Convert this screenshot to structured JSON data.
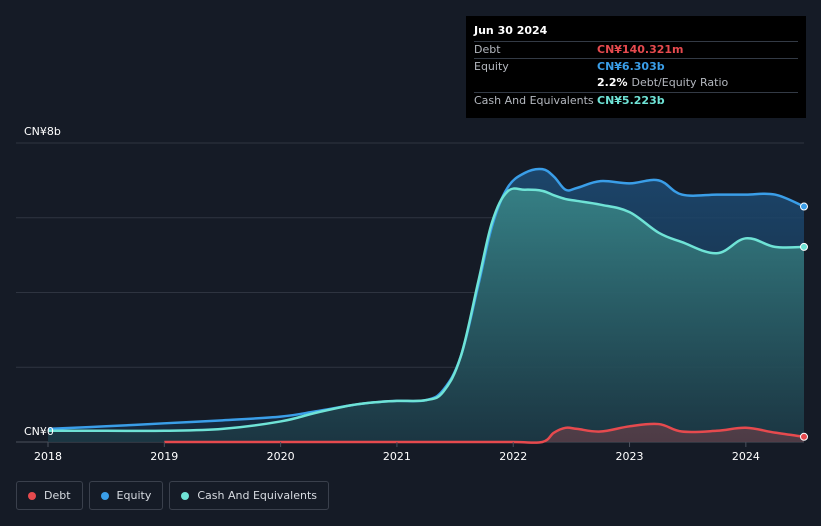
{
  "tooltip": {
    "date": "Jun 30 2024",
    "debt_label": "Debt",
    "debt_value": "CN¥140.321m",
    "equity_label": "Equity",
    "equity_value": "CN¥6.303b",
    "ratio_value": "2.2%",
    "ratio_label": "Debt/Equity Ratio",
    "cash_label": "Cash And Equivalents",
    "cash_value": "CN¥5.223b"
  },
  "legend": {
    "debt": "Debt",
    "equity": "Equity",
    "cash": "Cash And Equivalents"
  },
  "colors": {
    "debt": "#e64a4e",
    "equity": "#3a9ee8",
    "cash": "#6fe3d6",
    "background": "#151b26"
  },
  "chart_data": {
    "type": "area",
    "title": "",
    "ylabel": "",
    "xlabel": "",
    "ylim": [
      0,
      8
    ],
    "y_unit": "CN¥ billions",
    "y_tick_labels": [
      "CN¥0",
      "CN¥8b"
    ],
    "x_tick_labels": [
      "2018",
      "2019",
      "2020",
      "2021",
      "2022",
      "2023",
      "2024"
    ],
    "x_ticks": [
      2018,
      2019,
      2020,
      2021,
      2022,
      2023,
      2024
    ],
    "xlim": [
      2018,
      2024.5
    ],
    "series": [
      {
        "name": "Equity",
        "x": [
          2018,
          2018.5,
          2019,
          2019.5,
          2020,
          2020.3,
          2020.6,
          2020.8,
          2021,
          2021.25,
          2021.4,
          2021.55,
          2021.7,
          2021.82,
          2021.95,
          2022.1,
          2022.25,
          2022.35,
          2022.45,
          2022.55,
          2022.75,
          2023,
          2023.25,
          2023.45,
          2023.75,
          2024,
          2024.25,
          2024.5
        ],
        "values": [
          0.35,
          0.42,
          0.5,
          0.58,
          0.68,
          0.82,
          0.98,
          1.06,
          1.1,
          1.12,
          1.4,
          2.3,
          4.2,
          5.8,
          6.8,
          7.2,
          7.3,
          7.1,
          6.75,
          6.8,
          6.98,
          6.92,
          7.0,
          6.62,
          6.62,
          6.62,
          6.62,
          6.3
        ]
      },
      {
        "name": "Cash And Equivalents",
        "x": [
          2018,
          2018.5,
          2019,
          2019.5,
          2020,
          2020.3,
          2020.6,
          2020.8,
          2021,
          2021.25,
          2021.4,
          2021.55,
          2021.7,
          2021.82,
          2021.95,
          2022.1,
          2022.25,
          2022.35,
          2022.45,
          2022.55,
          2022.75,
          2023,
          2023.25,
          2023.45,
          2023.75,
          2024,
          2024.25,
          2024.5
        ],
        "values": [
          0.3,
          0.3,
          0.3,
          0.35,
          0.55,
          0.78,
          0.98,
          1.06,
          1.1,
          1.12,
          1.35,
          2.3,
          4.3,
          5.9,
          6.7,
          6.75,
          6.72,
          6.6,
          6.5,
          6.45,
          6.35,
          6.15,
          5.6,
          5.35,
          5.05,
          5.45,
          5.22,
          5.22
        ]
      },
      {
        "name": "Debt",
        "x": [
          2019,
          2019.5,
          2020,
          2020.5,
          2021,
          2021.5,
          2022,
          2022.25,
          2022.35,
          2022.45,
          2022.55,
          2022.75,
          2023,
          2023.25,
          2023.45,
          2023.75,
          2024,
          2024.25,
          2024.5
        ],
        "values": [
          0.0,
          0.0,
          0.0,
          0.0,
          0.0,
          0.0,
          0.0,
          0.0,
          0.25,
          0.38,
          0.35,
          0.28,
          0.42,
          0.48,
          0.28,
          0.3,
          0.38,
          0.25,
          0.14
        ]
      }
    ]
  }
}
